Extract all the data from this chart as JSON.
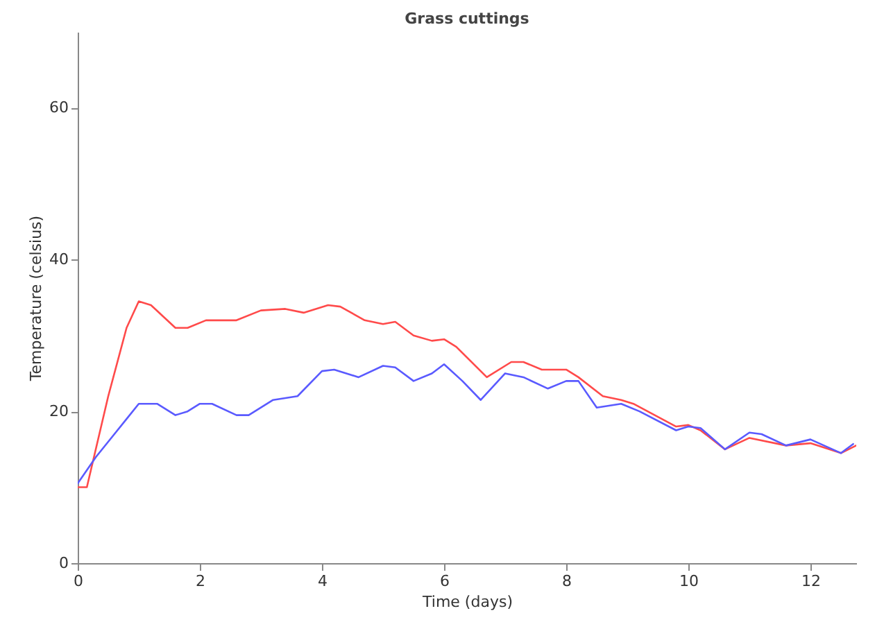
{
  "chart_data": {
    "type": "line",
    "title": "Grass cuttings",
    "xlabel": "Time (days)",
    "ylabel": "Temperature (celsius)",
    "xlim": [
      0,
      12.75
    ],
    "xticks": [
      0,
      2,
      4,
      6,
      8,
      10,
      12
    ],
    "ylim": [
      0,
      70
    ],
    "yticks": [
      0,
      20,
      40,
      60
    ],
    "grid": false,
    "legend": false,
    "series": [
      {
        "color": "#ff4a4a",
        "x": [
          0,
          0.15,
          0.5,
          0.8,
          1.0,
          1.2,
          1.6,
          1.8,
          2.1,
          2.6,
          3.0,
          3.4,
          3.7,
          4.1,
          4.3,
          4.7,
          5.0,
          5.2,
          5.5,
          5.8,
          6.0,
          6.2,
          6.7,
          7.1,
          7.3,
          7.6,
          8.0,
          8.2,
          8.6,
          8.9,
          9.1,
          9.8,
          10.0,
          10.2,
          10.6,
          11.0,
          11.6,
          12.0,
          12.5,
          12.75
        ],
        "values": [
          10,
          10,
          22,
          31,
          34.5,
          34,
          31,
          31,
          32,
          32,
          33.3,
          33.5,
          33,
          34,
          33.8,
          32,
          31.5,
          31.8,
          30,
          29.3,
          29.5,
          28.5,
          24.5,
          26.5,
          26.5,
          25.5,
          25.5,
          24.5,
          22,
          21.5,
          21,
          18,
          18.2,
          17.5,
          15,
          16.5,
          15.5,
          15.8,
          14.5,
          15.5
        ]
      },
      {
        "color": "#5a5aff",
        "x": [
          0,
          0.3,
          0.6,
          0.8,
          1.0,
          1.3,
          1.6,
          1.8,
          2.0,
          2.2,
          2.6,
          2.8,
          3.2,
          3.6,
          4.0,
          4.2,
          4.6,
          5.0,
          5.2,
          5.5,
          5.8,
          6.0,
          6.3,
          6.6,
          7.0,
          7.3,
          7.7,
          8.0,
          8.2,
          8.5,
          8.9,
          9.2,
          9.8,
          10.0,
          10.2,
          10.6,
          11.0,
          11.2,
          11.6,
          12.0,
          12.5,
          12.7
        ],
        "values": [
          10.5,
          14,
          17,
          19,
          21,
          21,
          19.5,
          20,
          21,
          21,
          19.5,
          19.5,
          21.5,
          22,
          25.3,
          25.5,
          24.5,
          26,
          25.8,
          24,
          25,
          26.2,
          24,
          21.5,
          25,
          24.5,
          23,
          24,
          24,
          20.5,
          21,
          20,
          17.5,
          18,
          17.8,
          15,
          17.2,
          17,
          15.5,
          16.3,
          14.5,
          15.7
        ]
      }
    ]
  }
}
